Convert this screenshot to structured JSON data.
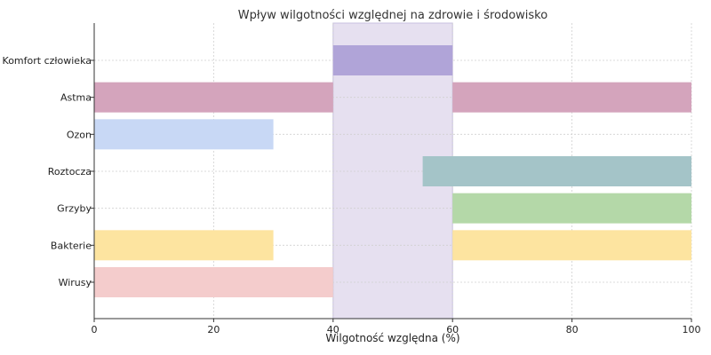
{
  "chart_data": {
    "type": "bar",
    "orientation": "horizontal",
    "title": "Wpływ wilgotności względnej na zdrowie i środowisko",
    "xlabel": "Wilgotność względna (%)",
    "ylabel": "",
    "xlim": [
      0,
      100
    ],
    "xticks": [
      "0",
      "20",
      "40",
      "60",
      "80",
      "100"
    ],
    "grid": true,
    "categories": [
      "Komfort człowieka",
      "Astma",
      "Ozon",
      "Roztocza",
      "Grzyby",
      "Bakterie",
      "Wirusy"
    ],
    "highlight_band": {
      "from": 40,
      "to": 60,
      "color": "#e6e0f0"
    },
    "ranges": [
      {
        "category": "Komfort człowieka",
        "segments": [
          [
            40,
            60
          ]
        ],
        "color": "#b0a4d8"
      },
      {
        "category": "Astma",
        "segments": [
          [
            0,
            40
          ],
          [
            60,
            100
          ]
        ],
        "color": "#d4a4bc"
      },
      {
        "category": "Ozon",
        "segments": [
          [
            0,
            30
          ]
        ],
        "color": "#c8d8f5"
      },
      {
        "category": "Roztocza",
        "segments": [
          [
            55,
            100
          ]
        ],
        "color": "#a4c4c8"
      },
      {
        "category": "Grzyby",
        "segments": [
          [
            60,
            100
          ]
        ],
        "color": "#b4d8a8"
      },
      {
        "category": "Bakterie",
        "segments": [
          [
            0,
            30
          ],
          [
            60,
            100
          ]
        ],
        "color": "#fde4a0"
      },
      {
        "category": "Wirusy",
        "segments": [
          [
            0,
            40
          ]
        ],
        "color": "#f4cccc"
      }
    ]
  }
}
